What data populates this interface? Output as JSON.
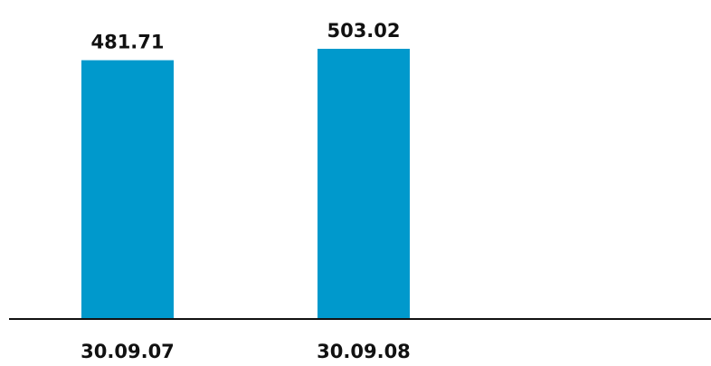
{
  "chart_data": {
    "type": "bar",
    "categories": [
      "30.09.07",
      "30.09.08"
    ],
    "values": [
      481.71,
      503.02
    ],
    "value_labels": [
      "481.71",
      "503.02"
    ],
    "title": "",
    "xlabel": "",
    "ylabel": "",
    "ylim": [
      0,
      503.02
    ],
    "grid": false,
    "legend": "none",
    "colors": {
      "bar": "#0099cc",
      "axis": "#111111",
      "text": "#111111"
    }
  }
}
